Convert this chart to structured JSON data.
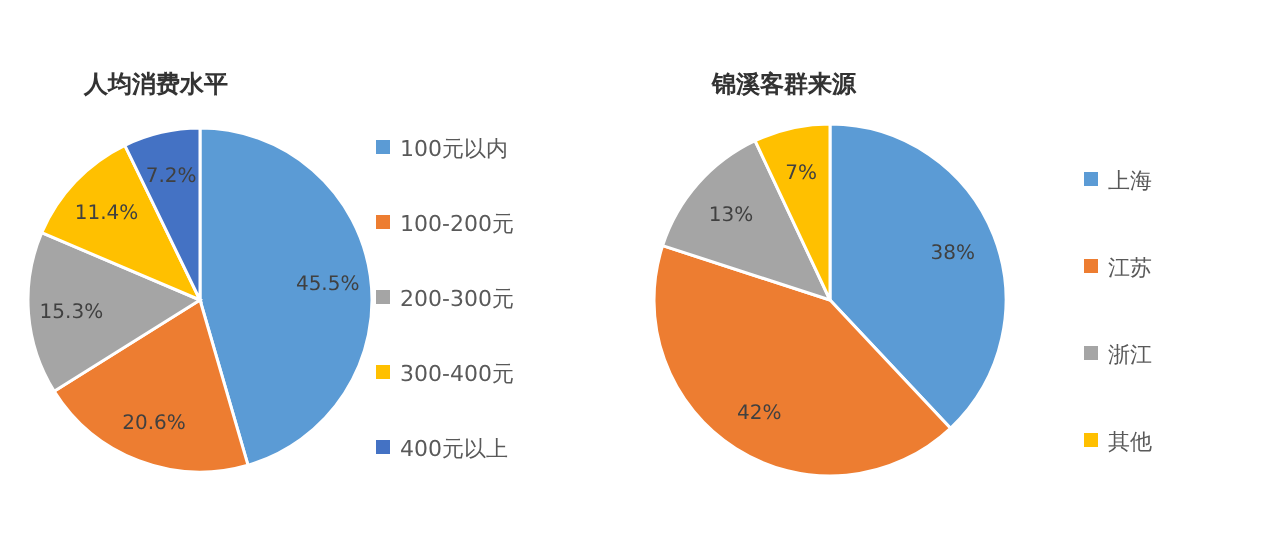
{
  "chart_data": [
    {
      "type": "pie",
      "title": "人均消费水平",
      "categories": [
        "100元以内",
        "100-200元",
        "200-300元",
        "300-400元",
        "400元以上"
      ],
      "values": [
        45.5,
        20.6,
        15.3,
        11.4,
        7.2
      ],
      "value_labels": [
        "45.5%",
        "20.6%",
        "15.3%",
        "11.4%",
        "7.2%"
      ],
      "colors": [
        "#5b9bd5",
        "#ed7d31",
        "#a5a5a5",
        "#ffc000",
        "#4472c4"
      ],
      "legend": "right"
    },
    {
      "type": "pie",
      "title": "锦溪客群来源",
      "categories": [
        "上海",
        "江苏",
        "浙江",
        "其他"
      ],
      "values": [
        38,
        42,
        13,
        7
      ],
      "value_labels": [
        "38%",
        "42%",
        "13%",
        "7%"
      ],
      "colors": [
        "#5b9bd5",
        "#ed7d31",
        "#a5a5a5",
        "#ffc000"
      ],
      "legend": "right"
    }
  ]
}
